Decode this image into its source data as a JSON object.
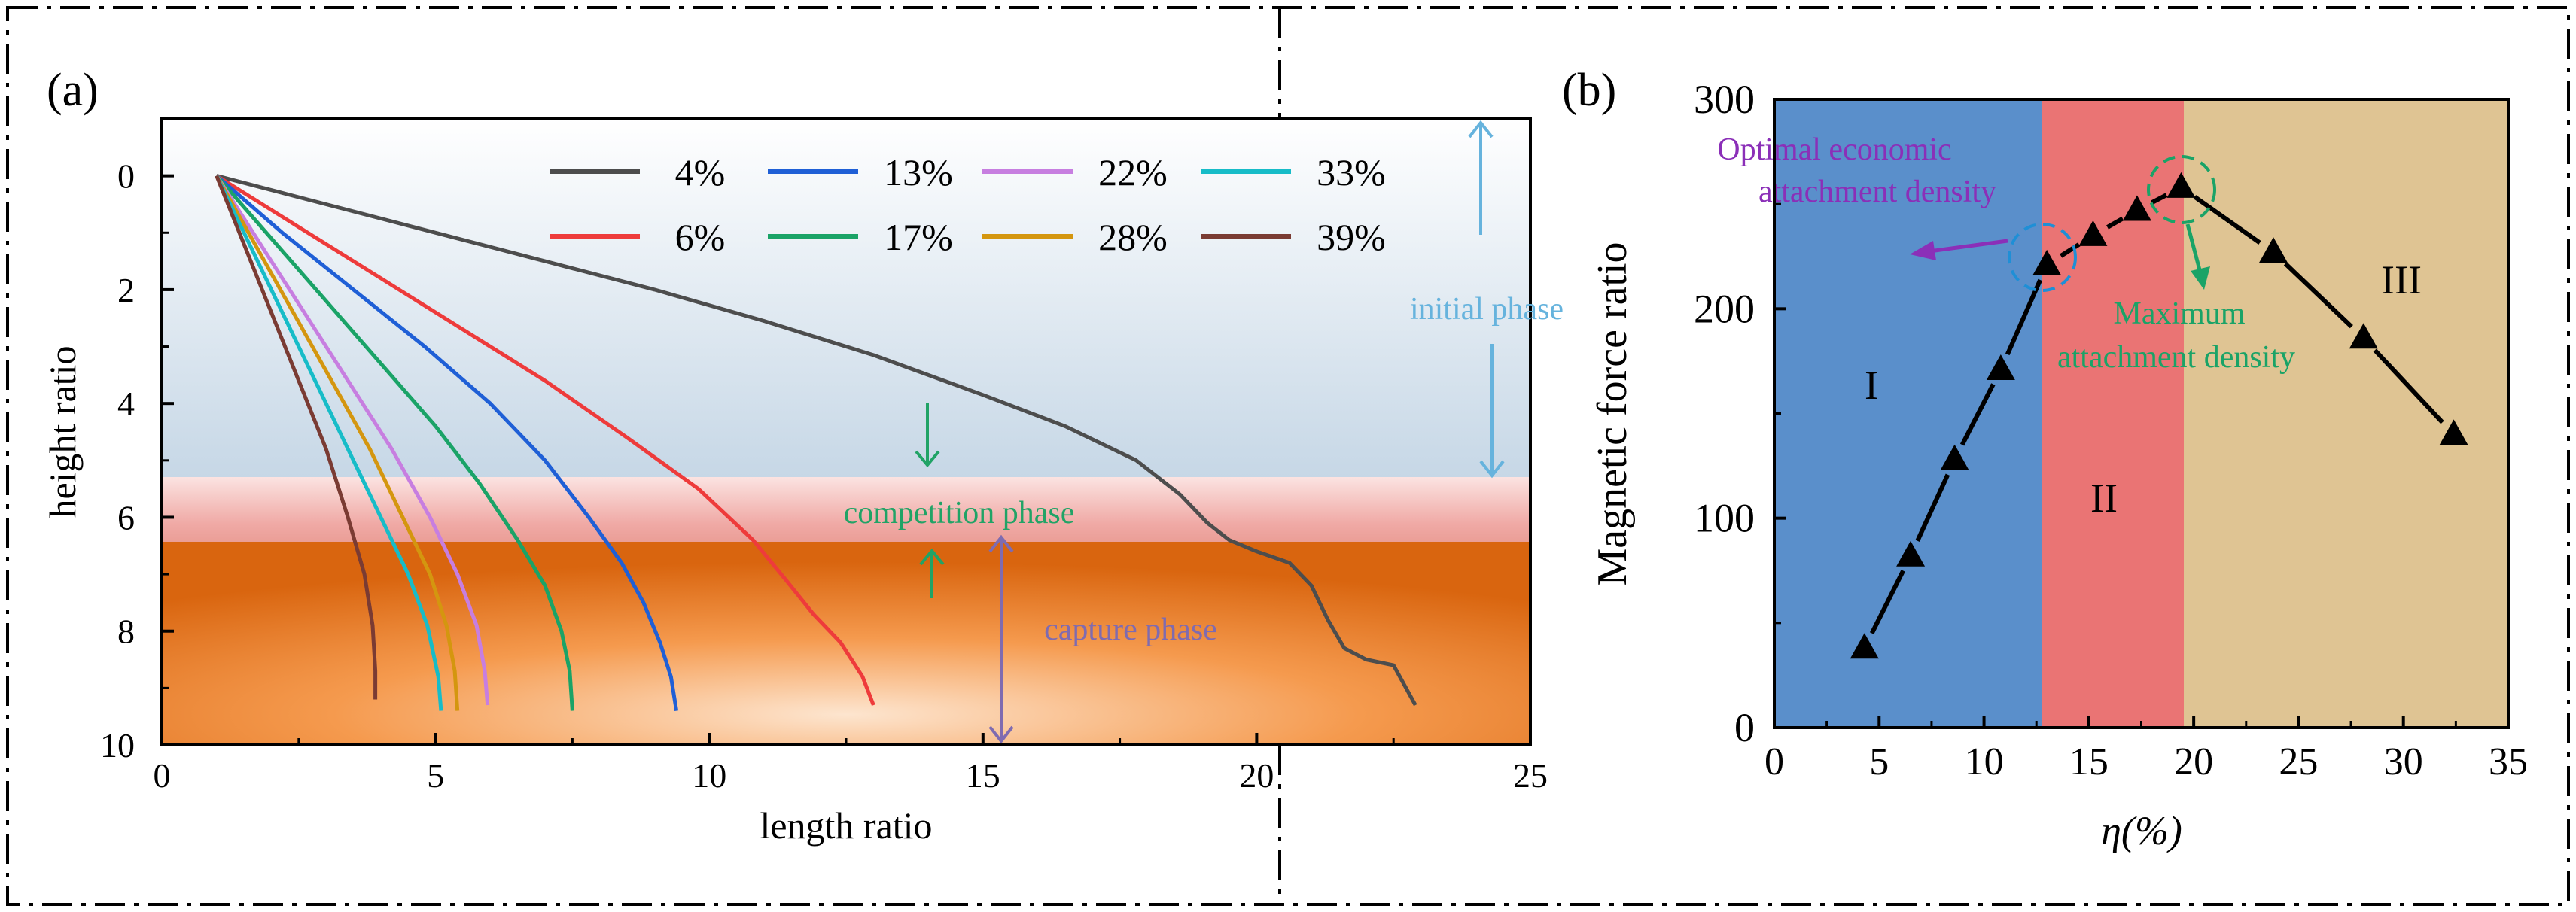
{
  "chart_data": [
    {
      "panel": "(a)",
      "type": "line",
      "xlabel": "length ratio",
      "ylabel": "height ratio",
      "xlim": [
        0,
        25
      ],
      "ylim": [
        10,
        -1
      ],
      "y_axis_inverted": true,
      "xticks": [
        0,
        5,
        10,
        15,
        20,
        25
      ],
      "yticks": [
        0,
        2,
        4,
        6,
        8,
        10
      ],
      "legend_position": "top-right",
      "series": [
        {
          "name": "4%",
          "color": "#4d4d4d",
          "x": [
            1.0,
            3,
            5,
            7,
            9,
            11,
            13,
            15,
            16.5,
            17.8,
            18.6,
            19.1,
            19.5,
            20.0,
            20.6,
            21.0,
            21.3,
            21.6,
            22.0,
            22.5,
            22.9
          ],
          "y": [
            0.0,
            0.5,
            1.0,
            1.5,
            2.0,
            2.55,
            3.15,
            3.85,
            4.4,
            5.0,
            5.6,
            6.1,
            6.4,
            6.6,
            6.8,
            7.2,
            7.8,
            8.3,
            8.5,
            8.6,
            9.3
          ]
        },
        {
          "name": "6%",
          "color": "#ee3b3b",
          "x": [
            1.0,
            2.5,
            4,
            5.5,
            7,
            8.5,
            9.8,
            10.8,
            11.4,
            11.9,
            12.4,
            12.8,
            13.0
          ],
          "y": [
            0.0,
            0.9,
            1.8,
            2.7,
            3.6,
            4.6,
            5.5,
            6.4,
            7.1,
            7.7,
            8.2,
            8.8,
            9.3
          ]
        },
        {
          "name": "13%",
          "color": "#1f5fd6",
          "x": [
            1.0,
            2.2,
            3.5,
            4.8,
            6.0,
            7.0,
            7.8,
            8.4,
            8.8,
            9.1,
            9.3,
            9.4
          ],
          "y": [
            0.0,
            1.0,
            2.0,
            3.0,
            4.0,
            5.0,
            6.0,
            6.8,
            7.5,
            8.2,
            8.8,
            9.4
          ]
        },
        {
          "name": "17%",
          "color": "#1aa367",
          "x": [
            1.0,
            2.0,
            3.0,
            4.0,
            5.0,
            5.8,
            6.5,
            7.0,
            7.3,
            7.45,
            7.5
          ],
          "y": [
            0.0,
            1.1,
            2.2,
            3.3,
            4.4,
            5.4,
            6.4,
            7.2,
            8.0,
            8.7,
            9.4
          ]
        },
        {
          "name": "22%",
          "color": "#c77ee0",
          "x": [
            1.0,
            1.8,
            2.6,
            3.4,
            4.2,
            4.9,
            5.4,
            5.75,
            5.9,
            5.95
          ],
          "y": [
            0.0,
            1.2,
            2.4,
            3.6,
            4.8,
            6.0,
            7.0,
            7.9,
            8.7,
            9.3
          ]
        },
        {
          "name": "28%",
          "color": "#d4960f",
          "x": [
            1.0,
            1.7,
            2.4,
            3.1,
            3.8,
            4.4,
            4.9,
            5.2,
            5.35,
            5.4
          ],
          "y": [
            0.0,
            1.2,
            2.4,
            3.6,
            4.8,
            6.0,
            7.0,
            7.9,
            8.7,
            9.4
          ]
        },
        {
          "name": "33%",
          "color": "#17bcc8",
          "x": [
            1.0,
            1.6,
            2.2,
            2.8,
            3.4,
            4.0,
            4.5,
            4.85,
            5.05,
            5.1
          ],
          "y": [
            0.0,
            1.2,
            2.4,
            3.6,
            4.8,
            6.0,
            7.0,
            7.9,
            8.8,
            9.4
          ]
        },
        {
          "name": "39%",
          "color": "#7a3b33",
          "x": [
            1.0,
            1.5,
            2.0,
            2.5,
            3.0,
            3.4,
            3.7,
            3.85,
            3.9,
            3.9
          ],
          "y": [
            0.0,
            1.2,
            2.4,
            3.6,
            4.8,
            6.0,
            7.0,
            7.9,
            8.7,
            9.2
          ]
        }
      ],
      "bands": [
        {
          "name": "initial phase",
          "y_from": -1,
          "y_to": 5.3,
          "color": "#c4d6e6"
        },
        {
          "name": "competition phase",
          "y_from": 5.3,
          "y_to": 6.45,
          "color": "#f1b7b4"
        },
        {
          "name": "capture phase",
          "y_from": 6.45,
          "y_to": 10,
          "color": "#e2701c"
        }
      ],
      "annotations": [
        {
          "text": "initial phase",
          "color": "#66b3dd",
          "x": 24.2,
          "y": 2.35
        },
        {
          "text": "competition phase",
          "color": "#21a366",
          "x": 14.0,
          "y": 5.95
        },
        {
          "text": "capture phase",
          "color": "#7f6bb0",
          "x": 18.3,
          "y": 8.0
        }
      ]
    },
    {
      "panel": "(b)",
      "type": "line",
      "xlabel": "η(%)",
      "ylabel": "Magnetic force ratio",
      "xlim": [
        0,
        35
      ],
      "ylim": [
        0,
        300
      ],
      "xticks": [
        0,
        5,
        10,
        15,
        20,
        25,
        30,
        35
      ],
      "yticks": [
        0,
        100,
        200,
        300
      ],
      "series": [
        {
          "name": "Magnetic force ratio",
          "color": "#000000",
          "marker": "triangle",
          "x": [
            4.3,
            6.5,
            8.6,
            10.8,
            13.0,
            15.2,
            17.3,
            19.4,
            23.8,
            28.1,
            32.4
          ],
          "y": [
            38,
            82,
            128,
            171,
            221,
            235,
            247,
            258,
            227,
            186,
            140
          ]
        }
      ],
      "regions": [
        {
          "label": "I",
          "x_from": 0,
          "x_to": 13.0,
          "color": "#5a8fcb"
        },
        {
          "label": "II",
          "x_from": 13.0,
          "x_to": 19.6,
          "color": "#ea7474"
        },
        {
          "label": "III",
          "x_from": 19.6,
          "x_to": 35,
          "color": "#dfc493"
        }
      ],
      "annotations": [
        {
          "text": "Optimal economic",
          "color": "#8b2fb8"
        },
        {
          "text": "attachment density",
          "color": "#8b2fb8"
        },
        {
          "text": "Maximum",
          "color": "#1aa367"
        },
        {
          "text": "attachment density",
          "color": "#1aa367"
        }
      ]
    }
  ]
}
